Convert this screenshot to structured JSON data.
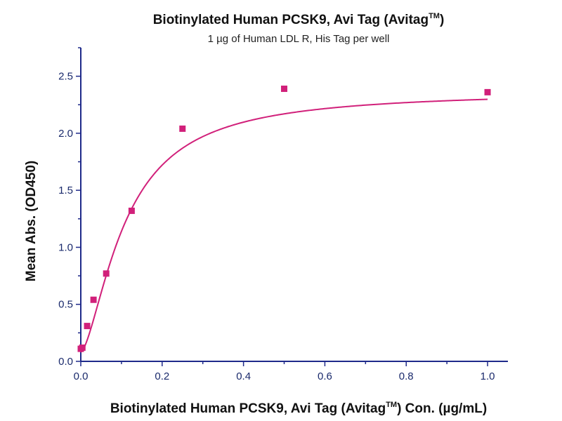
{
  "chart_data": {
    "type": "scatter",
    "title": "Biotinylated Human PCSK9, Avi Tag (Avitag",
    "title_superscript": "TM",
    "title_suffix": ")",
    "subtitle": "1 µg of Human LDL R, His Tag per well",
    "xlabel": "Biotinylated Human PCSK9, Avi Tag (Avitag",
    "xlabel_superscript": "TM",
    "xlabel_suffix": ") Con. (µg/mL)",
    "ylabel": "Mean Abs. (OD450)",
    "xlim": [
      0,
      1.05
    ],
    "ylim": [
      0,
      2.75
    ],
    "x_ticks": [
      0.0,
      0.2,
      0.4,
      0.6,
      0.8,
      1.0
    ],
    "x_tick_labels": [
      "0.0",
      "0.2",
      "0.4",
      "0.6",
      "0.8",
      "1.0"
    ],
    "y_ticks": [
      0.0,
      0.5,
      1.0,
      1.5,
      2.0,
      2.5
    ],
    "y_tick_labels": [
      "0.0",
      "0.5",
      "1.0",
      "1.5",
      "2.0",
      "2.5"
    ],
    "grid": false,
    "series": [
      {
        "x": [
          0.0,
          0.0039,
          0.0156,
          0.0313,
          0.0625,
          0.125,
          0.25,
          0.5,
          1.0
        ],
        "y": [
          0.11,
          0.12,
          0.31,
          0.54,
          0.77,
          1.32,
          2.04,
          2.39,
          2.36
        ],
        "color": "#d1207a",
        "marker": "square",
        "fit": "four-parameter logistic curve"
      }
    ]
  }
}
